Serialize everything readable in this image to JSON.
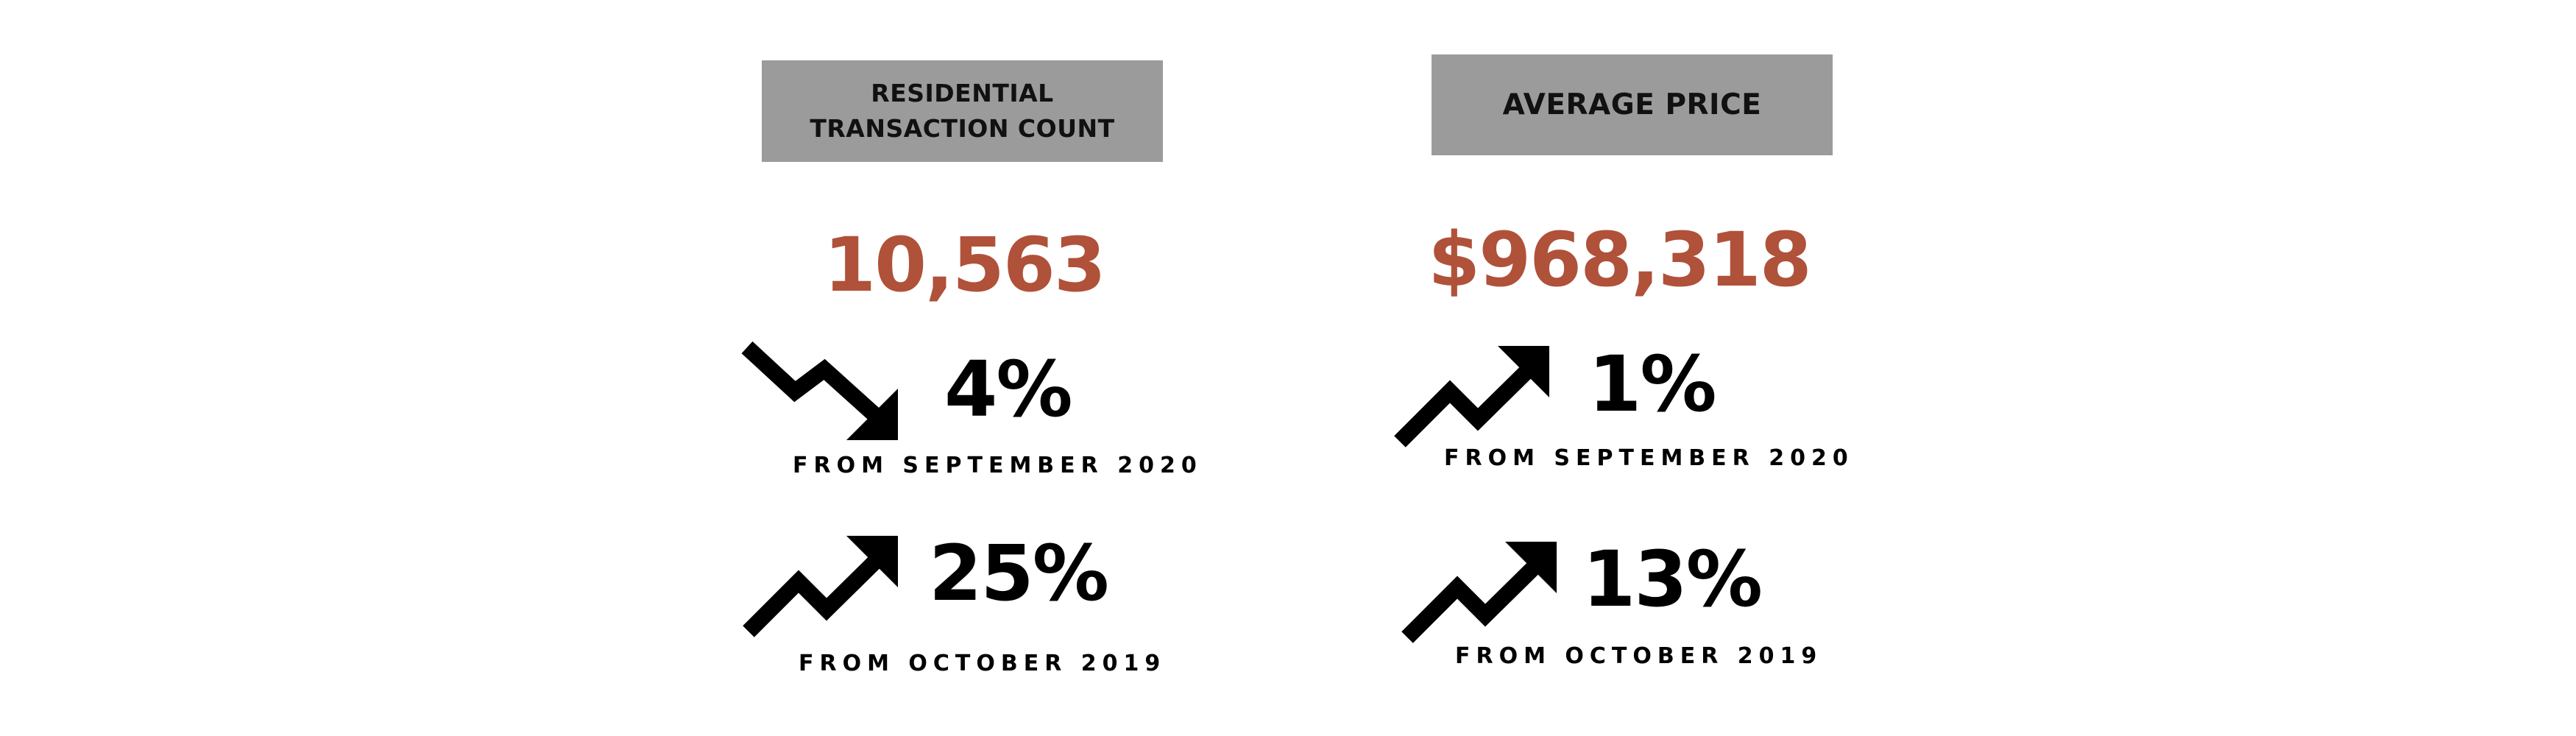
{
  "residential": {
    "header": "RESIDENTIAL\nTRANSACTION COUNT",
    "value": "10,563",
    "mom": {
      "direction": "down",
      "icon": "trend-down-arrow-icon",
      "change": "4%",
      "label": "FROM SEPTEMBER 2020"
    },
    "yoy": {
      "direction": "up",
      "icon": "trend-up-arrow-icon",
      "change": "25%",
      "label": "FROM OCTOBER 2019"
    }
  },
  "average_price": {
    "header": "AVERAGE PRICE",
    "value": "$968,318",
    "mom": {
      "direction": "up",
      "icon": "trend-up-arrow-icon",
      "change": "1%",
      "label": "FROM SEPTEMBER 2020"
    },
    "yoy": {
      "direction": "up",
      "icon": "trend-up-arrow-icon",
      "change": "13%",
      "label": "FROM OCTOBER 2019"
    }
  },
  "colors": {
    "header_bg": "#9b9b9b",
    "value_accent": "#b0513a",
    "text": "#000000"
  }
}
